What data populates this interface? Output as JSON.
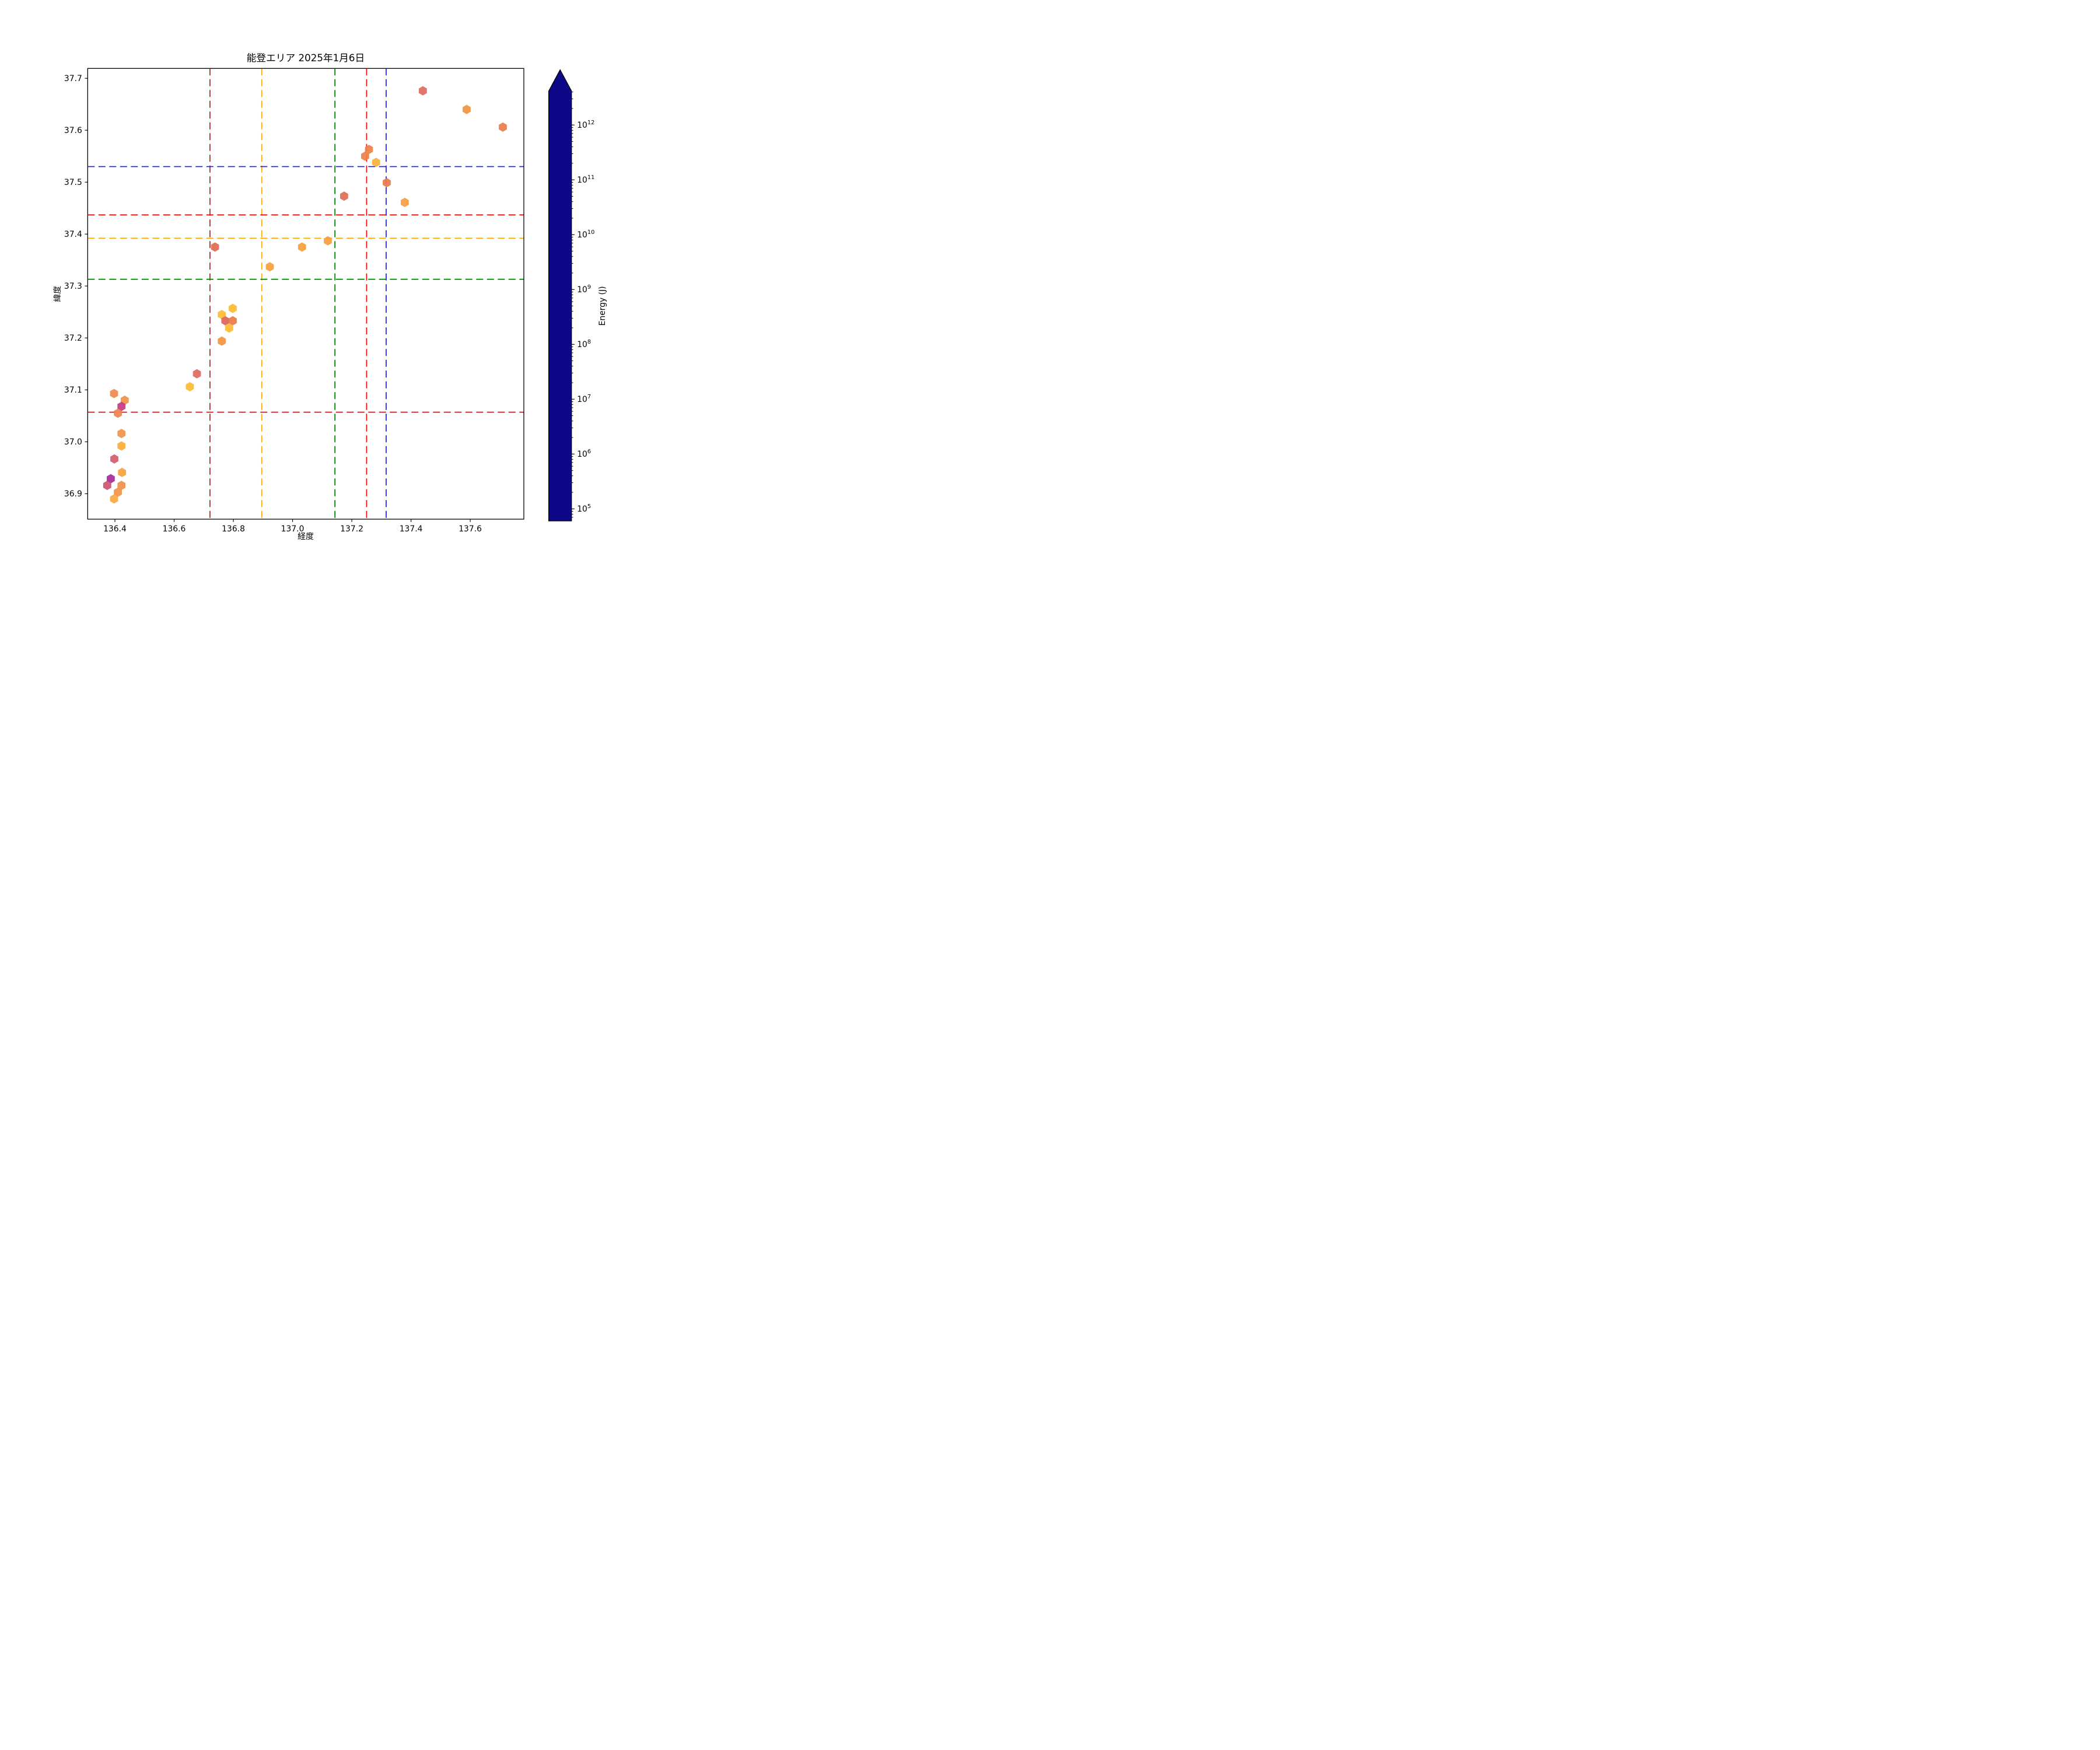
{
  "figure": {
    "title": "能登エリア 2025年1月6日",
    "background": "#ffffff"
  },
  "chart_data": {
    "type": "scatter",
    "marker": "hexagon",
    "title": "能登エリア 2025年1月6日",
    "xlabel": "経度",
    "ylabel": "緯度",
    "xlim": [
      136.308,
      137.781
    ],
    "ylim": [
      36.851,
      37.719
    ],
    "xticks": [
      136.4,
      136.6,
      136.8,
      137.0,
      137.2,
      137.4,
      137.6
    ],
    "yticks": [
      36.9,
      37.0,
      37.1,
      37.2,
      37.3,
      37.4,
      37.5,
      37.6,
      37.7
    ],
    "grid": false,
    "reference_lines": [
      {
        "name": "crosshair-darkred",
        "color": "#b22222",
        "lon": 136.721,
        "lat": 37.057,
        "style": "dashed"
      },
      {
        "name": "crosshair-orange",
        "color": "#ffa500",
        "lon": 136.896,
        "lat": 37.392,
        "style": "dashed"
      },
      {
        "name": "crosshair-green",
        "color": "#008000",
        "lon": 137.143,
        "lat": 37.313,
        "style": "dashed"
      },
      {
        "name": "crosshair-red",
        "color": "#ff0000",
        "lon": 137.25,
        "lat": 37.437,
        "style": "dashed"
      },
      {
        "name": "crosshair-blue",
        "color": "#1a1aff",
        "lon": 137.316,
        "lat": 37.53,
        "style": "dashed"
      }
    ],
    "points": [
      {
        "lon": 137.44,
        "lat": 37.676,
        "color": "#e0695f",
        "energy_j_approx": 50000000.0
      },
      {
        "lon": 137.588,
        "lat": 37.64,
        "color": "#f0953e",
        "energy_j_approx": 4600000.0
      },
      {
        "lon": 137.71,
        "lat": 37.606,
        "color": "#e87d49",
        "energy_j_approx": 13000000.0
      },
      {
        "lon": 137.174,
        "lat": 37.473,
        "color": "#de6d54",
        "energy_j_approx": 40000000.0
      },
      {
        "lon": 137.258,
        "lat": 37.563,
        "color": "#ea8148",
        "energy_j_approx": 11000000.0
      },
      {
        "lon": 137.245,
        "lat": 37.55,
        "color": "#ea8148",
        "energy_j_approx": 11000000.0
      },
      {
        "lon": 137.282,
        "lat": 37.538,
        "color": "#f7b03c",
        "energy_j_approx": 1500000.0
      },
      {
        "lon": 137.318,
        "lat": 37.499,
        "color": "#e8794c",
        "energy_j_approx": 16000000.0
      },
      {
        "lon": 137.379,
        "lat": 37.461,
        "color": "#f69d41",
        "energy_j_approx": 3200000.0
      },
      {
        "lon": 136.738,
        "lat": 37.375,
        "color": "#e0694f",
        "energy_j_approx": 40000000.0
      },
      {
        "lon": 136.923,
        "lat": 37.337,
        "color": "#f5a03c",
        "energy_j_approx": 3000000.0
      },
      {
        "lon": 137.032,
        "lat": 37.375,
        "color": "#f5a03c",
        "energy_j_approx": 3000000.0
      },
      {
        "lon": 137.119,
        "lat": 37.387,
        "color": "#f5a03c",
        "energy_j_approx": 3000000.0
      },
      {
        "lon": 136.653,
        "lat": 37.106,
        "color": "#fcbb33",
        "energy_j_approx": 1000000.0
      },
      {
        "lon": 136.677,
        "lat": 37.131,
        "color": "#e0695f",
        "energy_j_approx": 50000000.0
      },
      {
        "lon": 136.798,
        "lat": 37.257,
        "color": "#fcbb33",
        "energy_j_approx": 1000000.0
      },
      {
        "lon": 136.761,
        "lat": 37.245,
        "color": "#fcbb33",
        "energy_j_approx": 1000000.0
      },
      {
        "lon": 136.773,
        "lat": 37.233,
        "color": "#dd6456",
        "energy_j_approx": 60000000.0
      },
      {
        "lon": 136.798,
        "lat": 37.233,
        "color": "#ec7a45",
        "energy_j_approx": 13000000.0
      },
      {
        "lon": 136.786,
        "lat": 37.219,
        "color": "#fcbb33",
        "energy_j_approx": 1000000.0
      },
      {
        "lon": 136.761,
        "lat": 37.194,
        "color": "#f0953e",
        "energy_j_approx": 4600000.0
      },
      {
        "lon": 136.397,
        "lat": 37.093,
        "color": "#ee8a4a",
        "energy_j_approx": 8000000.0
      },
      {
        "lon": 136.433,
        "lat": 37.08,
        "color": "#f0914a",
        "energy_j_approx": 6000000.0
      },
      {
        "lon": 136.422,
        "lat": 37.068,
        "color": "#c13b82",
        "energy_j_approx": 1200000000.0
      },
      {
        "lon": 136.41,
        "lat": 37.055,
        "color": "#ec834d",
        "energy_j_approx": 11000000.0
      },
      {
        "lon": 136.422,
        "lat": 37.016,
        "color": "#f0924b",
        "energy_j_approx": 6000000.0
      },
      {
        "lon": 136.422,
        "lat": 36.992,
        "color": "#f8ad37",
        "energy_j_approx": 1700000.0
      },
      {
        "lon": 136.398,
        "lat": 36.967,
        "color": "#d45d6e",
        "energy_j_approx": 190000000.0
      },
      {
        "lon": 136.424,
        "lat": 36.941,
        "color": "#f6a33d",
        "energy_j_approx": 2600000.0
      },
      {
        "lon": 136.386,
        "lat": 36.929,
        "color": "#a62a9a",
        "energy_j_approx": 6300000000.0
      },
      {
        "lon": 136.374,
        "lat": 36.916,
        "color": "#cf5370",
        "energy_j_approx": 290000000.0
      },
      {
        "lon": 136.422,
        "lat": 36.916,
        "color": "#f0914a",
        "energy_j_approx": 6000000.0
      },
      {
        "lon": 136.41,
        "lat": 36.903,
        "color": "#f29245",
        "energy_j_approx": 5000000.0
      },
      {
        "lon": 136.397,
        "lat": 36.89,
        "color": "#f8a83c",
        "energy_j_approx": 2200000.0
      }
    ],
    "colorbar": {
      "label": "Energy (J)",
      "scale": "log",
      "colormap": "plasma_reversed",
      "extend": "max",
      "tick_exponents": [
        5,
        6,
        7,
        8,
        9,
        10,
        11,
        12
      ],
      "range_exponents": [
        4.78,
        12.62
      ],
      "over_color": "#0d0887",
      "plasma_stops_top_to_bottom": [
        "#0d0887",
        "#2c0594",
        "#41049d",
        "#5601a4",
        "#6a00a8",
        "#7e03a8",
        "#8f0da4",
        "#a11b9b",
        "#b12a90",
        "#c13b82",
        "#cc4778",
        "#d6556d",
        "#e16462",
        "#ea7457",
        "#f2844b",
        "#f89540",
        "#fca636",
        "#fcbb2c",
        "#fcce25",
        "#f6e61e",
        "#f0f921"
      ]
    }
  }
}
